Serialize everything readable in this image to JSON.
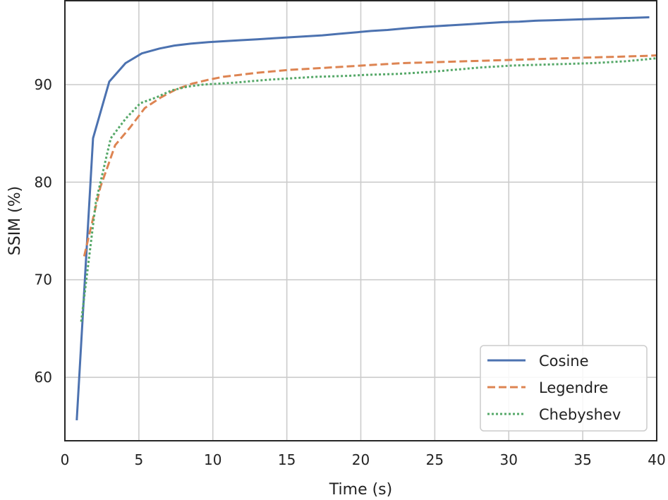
{
  "chart_data": {
    "type": "line",
    "title": "",
    "xlabel": "Time (s)",
    "ylabel": "SSIM (%)",
    "xlim": [
      0,
      40
    ],
    "ylim": [
      53.5,
      98.6
    ],
    "xticks": [
      0,
      5,
      10,
      15,
      20,
      25,
      30,
      35,
      40
    ],
    "yticks": [
      60,
      70,
      80,
      90
    ],
    "grid": true,
    "legend_position": "bottom-right",
    "series": [
      {
        "name": "Cosine",
        "color": "#4c72b0",
        "dash": "solid",
        "x": [
          0.8,
          1.9,
          3.0,
          4.1,
          5.2,
          6.4,
          7.4,
          8.5,
          9.7,
          10.8,
          11.9,
          13.0,
          14.1,
          15.2,
          16.3,
          17.4,
          18.5,
          19.6,
          20.7,
          21.8,
          22.9,
          24.1,
          25.2,
          26.3,
          27.4,
          28.5,
          29.6,
          30.7,
          31.8,
          32.9,
          34.0,
          35.1,
          36.2,
          37.3,
          38.4,
          39.5
        ],
        "y": [
          55.6,
          84.5,
          90.3,
          92.2,
          93.2,
          93.7,
          94.0,
          94.2,
          94.35,
          94.45,
          94.55,
          94.65,
          94.75,
          94.85,
          94.95,
          95.05,
          95.2,
          95.35,
          95.5,
          95.6,
          95.75,
          95.9,
          96.0,
          96.1,
          96.2,
          96.3,
          96.4,
          96.45,
          96.55,
          96.6,
          96.65,
          96.7,
          96.75,
          96.8,
          96.85,
          96.9
        ]
      },
      {
        "name": "Legendre",
        "color": "#dd8452",
        "dash": "dashed",
        "x": [
          1.3,
          2.4,
          3.4,
          4.4,
          5.4,
          6.5,
          7.5,
          8.6,
          9.7,
          10.7,
          11.8,
          12.9,
          14.0,
          15.1,
          16.2,
          17.3,
          18.4,
          19.5,
          20.6,
          21.7,
          22.8,
          23.9,
          25.0,
          26.1,
          27.2,
          28.3,
          29.4,
          30.5,
          31.6,
          32.7,
          33.8,
          34.9,
          36.0,
          37.1,
          38.2,
          39.3,
          40.0
        ],
        "y": [
          72.4,
          79.5,
          83.8,
          85.6,
          87.6,
          88.7,
          89.5,
          90.1,
          90.5,
          90.8,
          91.0,
          91.2,
          91.35,
          91.5,
          91.6,
          91.7,
          91.8,
          91.9,
          92.0,
          92.1,
          92.2,
          92.25,
          92.3,
          92.35,
          92.4,
          92.45,
          92.5,
          92.55,
          92.6,
          92.65,
          92.7,
          92.75,
          92.8,
          92.85,
          92.9,
          92.95,
          93.0
        ]
      },
      {
        "name": "Chebyshev",
        "color": "#55a868",
        "dash": "dotted",
        "x": [
          1.1,
          2.1,
          3.1,
          4.1,
          5.1,
          6.2,
          7.2,
          8.3,
          9.3,
          10.4,
          11.5,
          12.6,
          13.7,
          14.8,
          15.9,
          17.0,
          18.1,
          19.2,
          20.3,
          21.4,
          22.5,
          23.6,
          24.7,
          25.8,
          26.9,
          28.0,
          29.1,
          30.2,
          31.3,
          32.4,
          33.5,
          34.6,
          35.7,
          36.8,
          37.9,
          39.0,
          40.0
        ],
        "y": [
          65.7,
          78.0,
          84.5,
          86.5,
          88.1,
          88.7,
          89.4,
          89.8,
          90.0,
          90.1,
          90.2,
          90.35,
          90.5,
          90.6,
          90.7,
          90.8,
          90.85,
          90.9,
          91.0,
          91.05,
          91.1,
          91.2,
          91.3,
          91.45,
          91.6,
          91.75,
          91.85,
          91.95,
          92.0,
          92.05,
          92.1,
          92.15,
          92.2,
          92.3,
          92.4,
          92.55,
          92.7
        ]
      }
    ]
  }
}
